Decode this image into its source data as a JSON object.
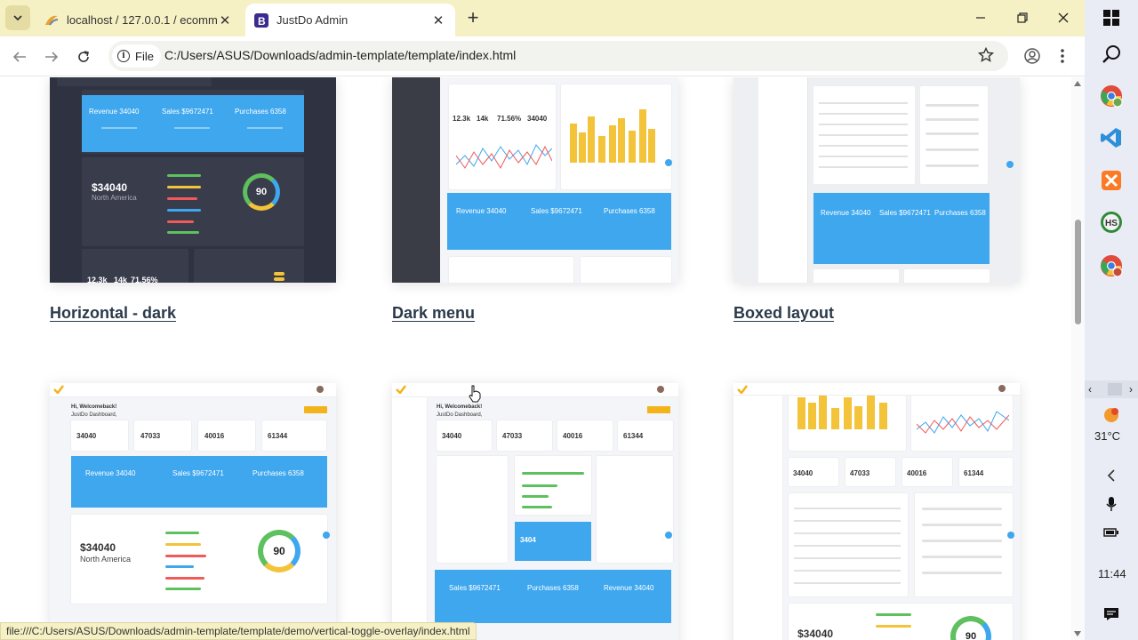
{
  "browser": {
    "tabs": [
      {
        "title": "localhost / 127.0.0.1 / ecommerce",
        "icon": "phpmyadmin-icon",
        "active": false
      },
      {
        "title": "JustDo Admin",
        "icon": "bootstrap-icon",
        "active": true
      }
    ],
    "address": {
      "scheme_label": "File",
      "url": "C:/Users/ASUS/Downloads/admin-template/template/index.html"
    },
    "status_url": "file:///C:/Users/ASUS/Downloads/admin-template/template/demo/vertical-toggle-overlay/index.html"
  },
  "demos": {
    "top": [
      {
        "label": "Horizontal - dark"
      },
      {
        "label": "Dark menu"
      },
      {
        "label": "Boxed layout"
      }
    ]
  },
  "previews": {
    "dark": {
      "revenue": "Revenue 34040",
      "sales": "Sales $9672471",
      "purchases": "Purchases 6358",
      "big_value": "$34040",
      "region": "North America",
      "gauge": "90",
      "stats": [
        "12.3k",
        "14k",
        "71.56%"
      ]
    },
    "darkmenu": {
      "stats": [
        "12.3k",
        "14k",
        "71.56%",
        "34040"
      ],
      "revenue": "Revenue 34040",
      "sales": "Sales $9672471",
      "purchases": "Purchases 6358"
    },
    "boxed": {
      "revenue": "Revenue 34040",
      "sales": "Sales $9672471",
      "purchases": "Purchases 6358"
    },
    "light1": {
      "greeting": "Hi, Welcomeback!",
      "subtitle": "JustDo Dashboard,",
      "kpis": [
        "34040",
        "47033",
        "40016",
        "61344"
      ],
      "revenue": "Revenue 34040",
      "sales": "Sales $9672471",
      "purchases": "Purchases 6358",
      "big_value": "$34040",
      "region": "North America",
      "gauge": "90"
    },
    "light2": {
      "greeting": "Hi, Welcomeback!",
      "subtitle": "JustDo Dashboard,",
      "kpis": [
        "34040",
        "47033",
        "40016",
        "61344"
      ],
      "tile_value": "3404",
      "sales": "Sales $9672471",
      "purchases": "Purchases 6358",
      "revenue": "Revenue 34040"
    },
    "light3": {
      "kpis": [
        "34040",
        "47033",
        "40016",
        "61344"
      ],
      "big_value": "$34040",
      "gauge": "90"
    }
  },
  "taskbar": {
    "weather": "31°C",
    "time": "11:44"
  },
  "colors": {
    "tabbar": "#f6f1c4",
    "accent_blue": "#3ea7ee",
    "dark_bg": "#2f3240",
    "link": "#2b3a4a"
  }
}
